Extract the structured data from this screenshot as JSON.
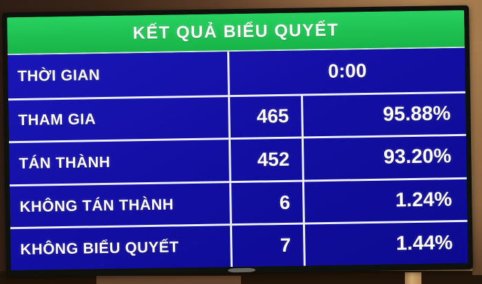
{
  "screen": {
    "title": "KẾT QUẢ BIỂU QUYẾT",
    "rows": [
      {
        "label": "THỜI GIAN",
        "value": "0:00"
      },
      {
        "label": "THAM GIA",
        "count": "465",
        "percent": "95.88%"
      },
      {
        "label": "TÁN THÀNH",
        "count": "452",
        "percent": "93.20%"
      },
      {
        "label": "KHÔNG TÁN THÀNH",
        "count": "6",
        "percent": "1.24%"
      },
      {
        "label": "KHÔNG BIỂU QUYẾT",
        "count": "7",
        "percent": "1.44%"
      }
    ],
    "colors": {
      "header_bg": "#1dbf4f",
      "table_bg": "#130fa4",
      "grid_line": "#eef2fa",
      "text": "#ffffff",
      "bezel": "#0e110c"
    }
  }
}
